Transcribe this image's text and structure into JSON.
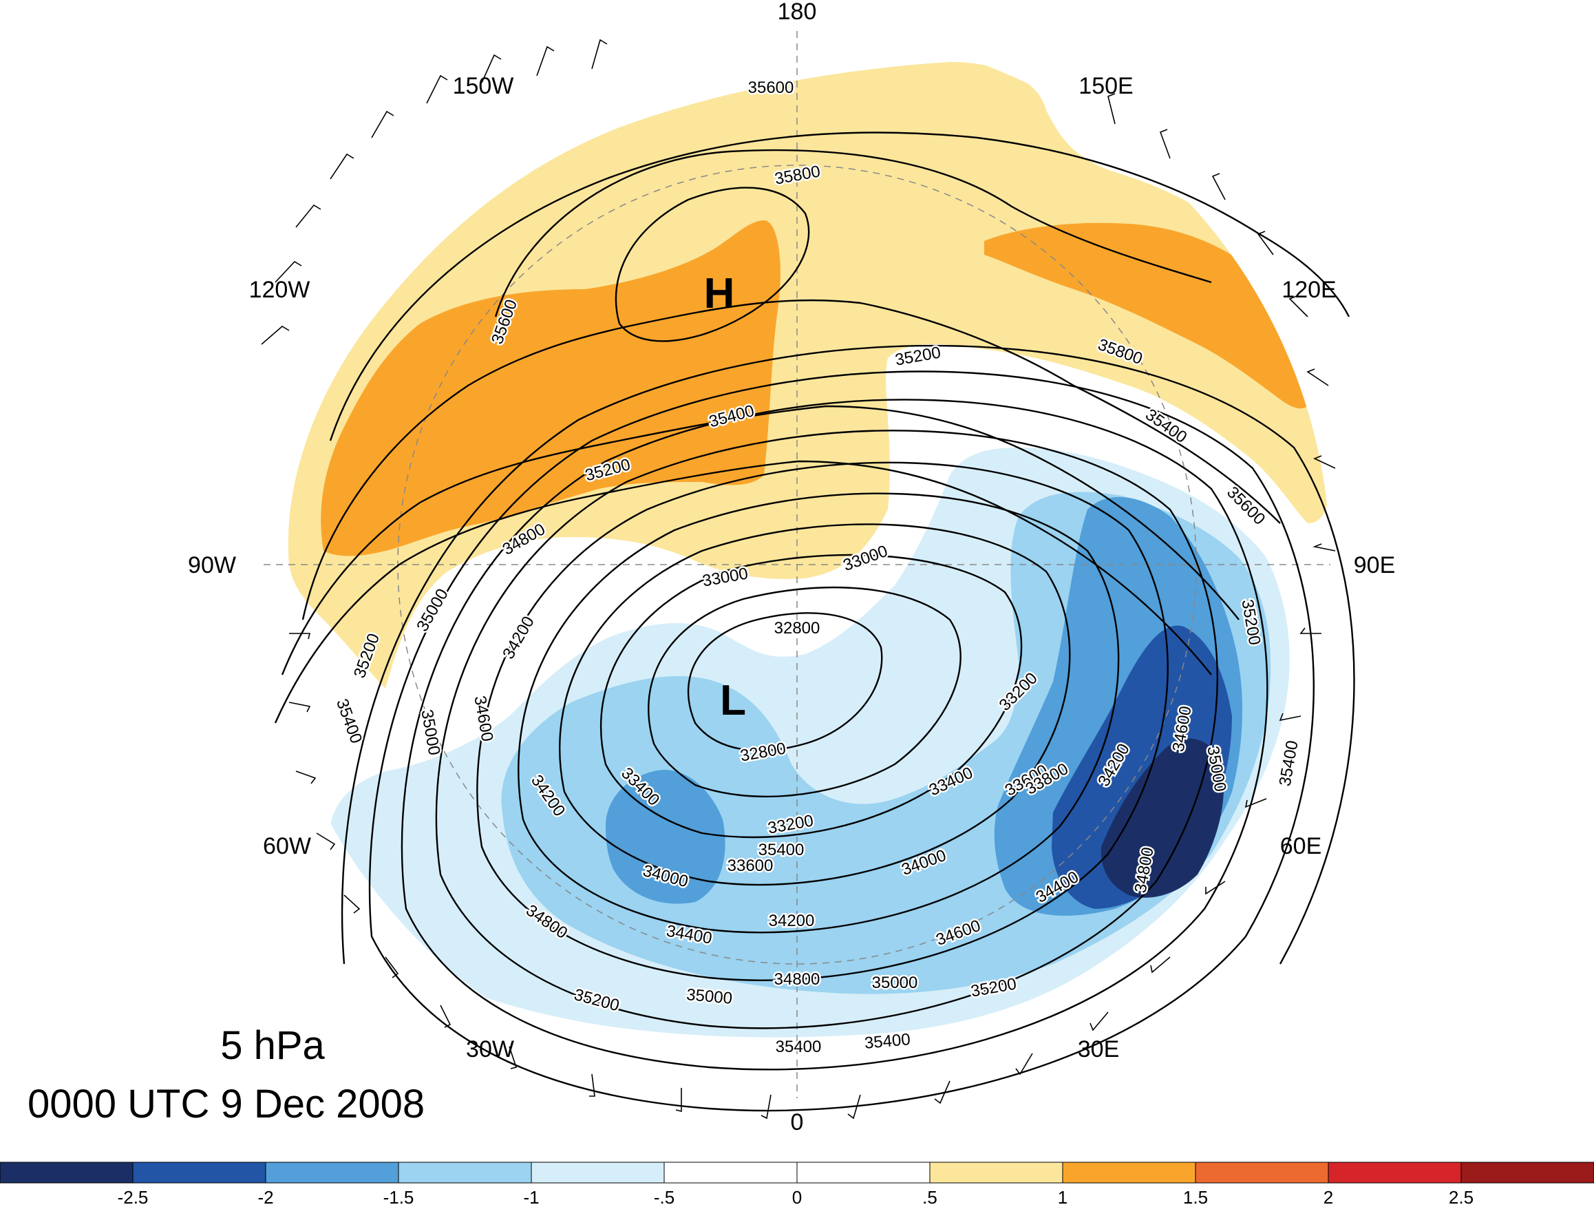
{
  "map": {
    "title_level": "5 hPa",
    "title_time": "0000 UTC 9 Dec 2008",
    "projection": "north-polar-stereographic",
    "longitude_labels": [
      "180",
      "150E",
      "120E",
      "90E",
      "60E",
      "30E",
      "0",
      "30W",
      "60W",
      "90W",
      "120W",
      "150W"
    ],
    "pressure_centers": [
      {
        "symbol": "H",
        "kind": "high"
      },
      {
        "symbol": "L",
        "kind": "low"
      }
    ],
    "contour_labels": [
      "35600",
      "35800",
      "35600",
      "35400",
      "35200",
      "34800",
      "35000",
      "35200",
      "35400",
      "35400",
      "35200",
      "35800",
      "35400",
      "35600",
      "35200",
      "35000",
      "35400",
      "33000",
      "32800",
      "32800",
      "33000",
      "34200",
      "34600",
      "35000",
      "34200",
      "33400",
      "33200",
      "33600",
      "34000",
      "34400",
      "34200",
      "34800",
      "35200",
      "35000",
      "34800",
      "35000",
      "35200",
      "35400",
      "35400",
      "34600",
      "34000",
      "33400",
      "33200",
      "33600",
      "33800",
      "34200",
      "34400",
      "34800",
      "34600"
    ],
    "colors": {
      "neg_2_5": "#1b2f66",
      "neg_2": "#2255a6",
      "neg_1_5": "#529fd9",
      "neg_1": "#9bd3f1",
      "neg_0_5": "#d6eef9",
      "pos_0_5": "#fbe69c",
      "pos_1": "#f9a52c",
      "pos_1_5": "#ec6a30",
      "pos_2": "#d62428",
      "pos_2_5": "#9b1a1a"
    }
  },
  "colorbar": {
    "ticks": [
      "-2.5",
      "-2",
      "-1.5",
      "-1",
      "-.5",
      "0",
      ".5",
      "1",
      "1.5",
      "2",
      "2.5"
    ],
    "bins": [
      {
        "range": [
          -3.0,
          -2.5
        ],
        "color": "#1b2f66"
      },
      {
        "range": [
          -2.5,
          -2.0
        ],
        "color": "#2255a6"
      },
      {
        "range": [
          -2.0,
          -1.5
        ],
        "color": "#529fd9"
      },
      {
        "range": [
          -1.5,
          -1.0
        ],
        "color": "#9bd3f1"
      },
      {
        "range": [
          -1.0,
          -0.5
        ],
        "color": "#d6eef9"
      },
      {
        "range": [
          -0.5,
          0.0
        ],
        "color": "#ffffff"
      },
      {
        "range": [
          0.0,
          0.5
        ],
        "color": "#ffffff"
      },
      {
        "range": [
          0.5,
          1.0
        ],
        "color": "#fbe69c"
      },
      {
        "range": [
          1.0,
          1.5
        ],
        "color": "#f9a52c"
      },
      {
        "range": [
          1.5,
          2.0
        ],
        "color": "#ec6a30"
      },
      {
        "range": [
          2.0,
          2.5
        ],
        "color": "#d62428"
      },
      {
        "range": [
          2.5,
          3.0
        ],
        "color": "#9b1a1a"
      }
    ]
  }
}
